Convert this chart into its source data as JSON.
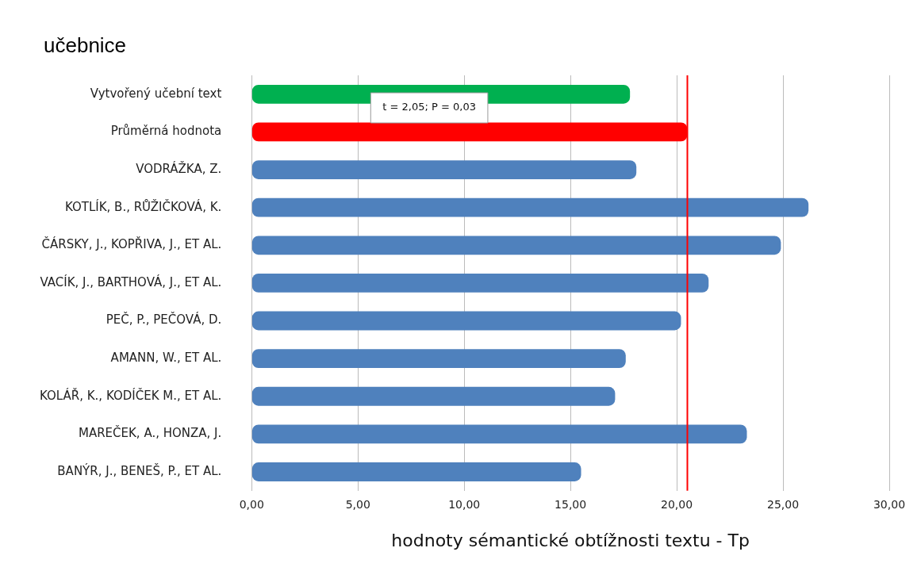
{
  "chart_data": {
    "type": "bar",
    "orientation": "horizontal",
    "title": "učebnice",
    "xlabel": "hodnoty sémantické obtížnosti textu - Tp",
    "categories": [
      "Vytvořený učební text",
      "Průměrná hodnota",
      "VODRÁŽKA, Z.",
      "KOTLÍK, B., RŮŽIČKOVÁ, K.",
      "ČÁRSKY, J., KOPŘIVA, J., ET AL.",
      "VACÍK, J., BARTHOVÁ, J., ET AL.",
      "PEČ, P., PEČOVÁ, D.",
      "AMANN, W., ET AL.",
      "KOLÁŘ, K., KODÍČEK M., ET AL.",
      "MAREČEK, A., HONZA, J.",
      "BANÝR, J., BENEŠ, P., ET AL."
    ],
    "values": [
      17.8,
      20.5,
      18.1,
      26.2,
      24.9,
      21.5,
      20.2,
      17.6,
      17.1,
      23.3,
      15.5
    ],
    "colors": [
      "#00b050",
      "#ff0000",
      "#4f81bd",
      "#4f81bd",
      "#4f81bd",
      "#4f81bd",
      "#4f81bd",
      "#4f81bd",
      "#4f81bd",
      "#4f81bd",
      "#4f81bd"
    ],
    "xlim": [
      0,
      30
    ],
    "xticks": [
      {
        "value": 0,
        "label": "0,00"
      },
      {
        "value": 5,
        "label": "5,00"
      },
      {
        "value": 10,
        "label": "10,00"
      },
      {
        "value": 15,
        "label": "15,00"
      },
      {
        "value": 20,
        "label": "20,00"
      },
      {
        "value": 25,
        "label": "25,00"
      },
      {
        "value": 30,
        "label": "30,00"
      }
    ],
    "grid": "x",
    "legend": false,
    "ref_lines": [
      {
        "axis": "x",
        "value": 20.5,
        "color": "#ff0000"
      }
    ],
    "annotations": [
      "t = 2,05; P = 0,03"
    ]
  }
}
